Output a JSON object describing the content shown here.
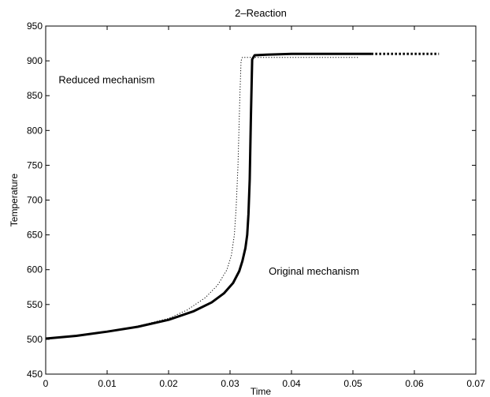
{
  "chart_data": {
    "type": "line",
    "title": "2–Reaction",
    "xlabel": "Time",
    "ylabel": "Temperature",
    "xlim": [
      0,
      0.07
    ],
    "ylim": [
      450,
      950
    ],
    "xticks": [
      0,
      0.01,
      0.02,
      0.03,
      0.04,
      0.05,
      0.06,
      0.07
    ],
    "xtick_labels": [
      "0",
      "0.01",
      "0.02",
      "0.03",
      "0.04",
      "0.05",
      "0.06",
      "0.07"
    ],
    "yticks": [
      450,
      500,
      550,
      600,
      650,
      700,
      750,
      800,
      850,
      900,
      950
    ],
    "ytick_labels": [
      "450",
      "500",
      "550",
      "600",
      "650",
      "700",
      "750",
      "800",
      "850",
      "900",
      "950"
    ],
    "grid": false,
    "annotations": [
      {
        "text": "Reduced mechanism",
        "x": 0.0021,
        "y": 868
      },
      {
        "text": "Original mechanism",
        "x": 0.0363,
        "y": 593
      }
    ],
    "series": [
      {
        "style": "thick-solid",
        "color": "#000000",
        "x": [
          0,
          0.005,
          0.01,
          0.015,
          0.02,
          0.024,
          0.027,
          0.029,
          0.0305,
          0.0315,
          0.032,
          0.0325,
          0.0328,
          0.033,
          0.0332,
          0.0334,
          0.0336,
          0.034,
          0.036,
          0.04,
          0.045,
          0.05,
          0.053
        ],
        "y": [
          501,
          505,
          511,
          518,
          528,
          540,
          553,
          566,
          581,
          598,
          612,
          631,
          650,
          680,
          730,
          820,
          902,
          908,
          909,
          910,
          910,
          910,
          910
        ]
      },
      {
        "style": "dotted",
        "color": "#000000",
        "x": [
          0,
          0.005,
          0.01,
          0.015,
          0.02,
          0.023,
          0.026,
          0.028,
          0.0295,
          0.0302,
          0.0307,
          0.031,
          0.0313,
          0.0316,
          0.0318,
          0.032,
          0.033,
          0.035,
          0.04,
          0.045,
          0.051
        ],
        "y": [
          501,
          505,
          511,
          519,
          530,
          542,
          560,
          578,
          600,
          620,
          650,
          690,
          750,
          850,
          900,
          905,
          905,
          905,
          905,
          905,
          905
        ]
      },
      {
        "style": "bold-dotted",
        "color": "#000000",
        "x": [
          0.053,
          0.064
        ],
        "y": [
          910,
          910
        ]
      }
    ]
  }
}
